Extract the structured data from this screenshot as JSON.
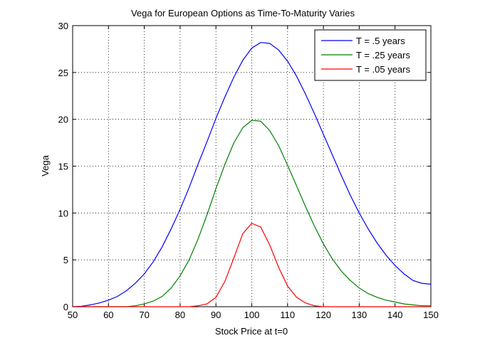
{
  "chart_data": {
    "type": "line",
    "title": "Vega for European Options as Time-To-Maturity Varies",
    "xlabel": "Stock Price at t=0",
    "ylabel": "Vega",
    "xlim": [
      50,
      150
    ],
    "ylim": [
      0,
      30
    ],
    "xticks": [
      50,
      60,
      70,
      80,
      90,
      100,
      110,
      120,
      130,
      140,
      150
    ],
    "yticks": [
      0,
      5,
      10,
      15,
      20,
      25,
      30
    ],
    "grid": true,
    "legend_position": "top-right",
    "x": [
      50,
      52.5,
      55,
      57.5,
      60,
      62.5,
      65,
      67.5,
      70,
      72.5,
      75,
      77.5,
      80,
      82.5,
      85,
      87.5,
      90,
      92.5,
      95,
      97.5,
      100,
      102.5,
      105,
      107.5,
      110,
      112.5,
      115,
      117.5,
      120,
      122.5,
      125,
      127.5,
      130,
      132.5,
      135,
      137.5,
      140,
      142.5,
      145,
      147.5,
      150
    ],
    "series": [
      {
        "name": "T = .5 years",
        "color": "#0000ff",
        "values": [
          0.0,
          0.05,
          0.2,
          0.4,
          0.7,
          1.1,
          1.7,
          2.5,
          3.5,
          4.8,
          6.4,
          8.3,
          10.4,
          12.7,
          15.2,
          17.6,
          20.1,
          22.4,
          24.5,
          26.3,
          27.6,
          28.2,
          28.1,
          27.4,
          26.2,
          24.6,
          22.7,
          20.6,
          18.4,
          16.2,
          14.0,
          11.9,
          10.0,
          8.3,
          6.8,
          5.5,
          4.4,
          3.5,
          2.8,
          2.5,
          2.4
        ]
      },
      {
        "name": "T = .25 years",
        "color": "#008000",
        "values": [
          0.0,
          0.0,
          0.0,
          0.0,
          0.0,
          0.0,
          0.0,
          0.1,
          0.3,
          0.6,
          1.1,
          2.0,
          3.3,
          5.0,
          7.2,
          9.8,
          12.6,
          15.2,
          17.5,
          19.1,
          19.9,
          19.8,
          18.8,
          17.2,
          15.1,
          12.9,
          10.7,
          8.6,
          6.7,
          5.1,
          3.8,
          2.8,
          2.0,
          1.4,
          1.0,
          0.7,
          0.5,
          0.3,
          0.2,
          0.1,
          0.1
        ]
      },
      {
        "name": "T = .05 years",
        "color": "#ff0000",
        "values": [
          0.0,
          0.0,
          0.0,
          0.0,
          0.0,
          0.0,
          0.0,
          0.0,
          0.0,
          0.0,
          0.0,
          0.0,
          0.0,
          0.0,
          0.1,
          0.3,
          1.0,
          2.7,
          5.2,
          7.8,
          8.9,
          8.5,
          6.6,
          4.2,
          2.2,
          1.0,
          0.4,
          0.1,
          0.0,
          0.0,
          0.0,
          0.0,
          0.0,
          0.0,
          0.0,
          0.0,
          0.0,
          0.0,
          0.0,
          0.0,
          0.0
        ]
      }
    ]
  }
}
